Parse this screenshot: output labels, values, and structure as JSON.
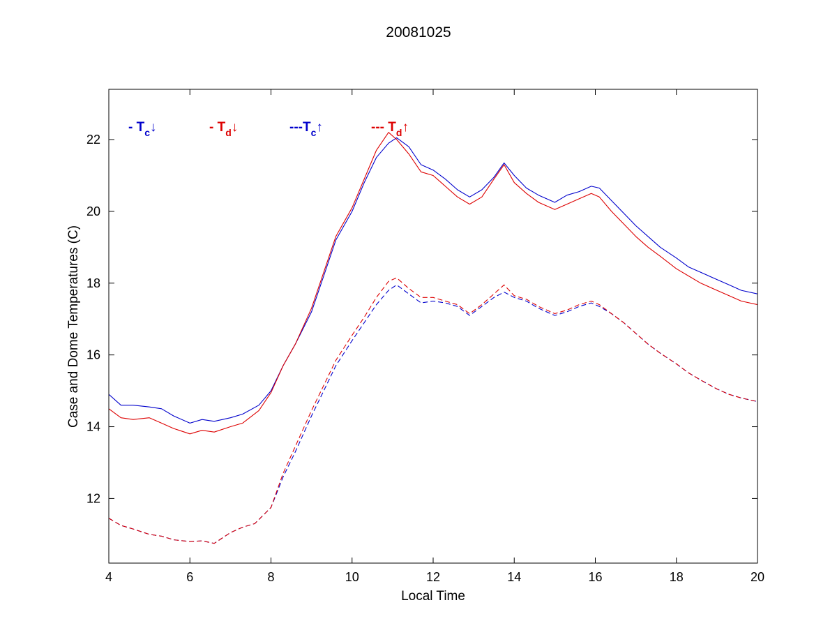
{
  "chart_data": {
    "type": "line",
    "title": "20081025",
    "xlabel": "Local Time",
    "ylabel": "Case and Dome Temperatures (C)",
    "xlim": [
      4,
      20
    ],
    "ylim": [
      10.2,
      23.4
    ],
    "xticks": [
      4,
      6,
      8,
      10,
      12,
      14,
      16,
      18,
      20
    ],
    "yticks": [
      12,
      14,
      16,
      18,
      20,
      22
    ],
    "grid": false,
    "legend_placement": "top-left (inside axes, horizontal)",
    "legend": [
      {
        "prefix": "- T",
        "sub": "c",
        "arrow": "↓",
        "color": "#0000cc"
      },
      {
        "prefix": "- T",
        "sub": "d",
        "arrow": "↓",
        "color": "#dd0000"
      },
      {
        "prefix": "---T",
        "sub": "c",
        "arrow": "↑",
        "color": "#0000cc"
      },
      {
        "prefix": "--- T",
        "sub": "d",
        "arrow": "↑",
        "color": "#dd0000"
      }
    ],
    "series": [
      {
        "color": "#0000cc",
        "style": "solid",
        "x": [
          4.0,
          4.3,
          4.6,
          5.0,
          5.3,
          5.6,
          6.0,
          6.3,
          6.6,
          7.0,
          7.3,
          7.7,
          8.0,
          8.3,
          8.6,
          9.0,
          9.3,
          9.6,
          10.0,
          10.3,
          10.6,
          10.9,
          11.1,
          11.4,
          11.7,
          12.0,
          12.3,
          12.6,
          12.9,
          13.2,
          13.5,
          13.75,
          14.0,
          14.3,
          14.6,
          15.0,
          15.3,
          15.6,
          15.9,
          16.1,
          16.4,
          16.7,
          17.0,
          17.3,
          17.6,
          18.0,
          18.3,
          18.6,
          19.0,
          19.3,
          19.6,
          20.0
        ],
        "y": [
          14.9,
          14.6,
          14.6,
          14.55,
          14.5,
          14.3,
          14.1,
          14.2,
          14.15,
          14.25,
          14.35,
          14.6,
          15.0,
          15.7,
          16.3,
          17.2,
          18.2,
          19.2,
          20.0,
          20.8,
          21.5,
          21.9,
          22.05,
          21.8,
          21.3,
          21.15,
          20.9,
          20.6,
          20.4,
          20.6,
          20.95,
          21.35,
          21.0,
          20.65,
          20.45,
          20.25,
          20.45,
          20.55,
          20.7,
          20.65,
          20.3,
          19.95,
          19.6,
          19.3,
          19.0,
          18.7,
          18.45,
          18.3,
          18.1,
          17.95,
          17.8,
          17.7
        ]
      },
      {
        "color": "#dd0000",
        "style": "solid",
        "x": [
          4.0,
          4.3,
          4.6,
          5.0,
          5.3,
          5.6,
          6.0,
          6.3,
          6.6,
          7.0,
          7.3,
          7.7,
          8.0,
          8.3,
          8.6,
          9.0,
          9.3,
          9.6,
          10.0,
          10.3,
          10.6,
          10.9,
          11.1,
          11.4,
          11.7,
          12.0,
          12.3,
          12.6,
          12.9,
          13.2,
          13.5,
          13.75,
          14.0,
          14.3,
          14.6,
          15.0,
          15.3,
          15.6,
          15.9,
          16.1,
          16.4,
          16.7,
          17.0,
          17.3,
          17.6,
          18.0,
          18.3,
          18.6,
          19.0,
          19.3,
          19.6,
          20.0
        ],
        "y": [
          14.5,
          14.25,
          14.2,
          14.25,
          14.1,
          13.95,
          13.8,
          13.9,
          13.85,
          14.0,
          14.1,
          14.45,
          14.95,
          15.7,
          16.3,
          17.3,
          18.3,
          19.3,
          20.1,
          20.9,
          21.7,
          22.2,
          22.0,
          21.6,
          21.1,
          21.0,
          20.7,
          20.4,
          20.2,
          20.4,
          20.9,
          21.3,
          20.8,
          20.5,
          20.25,
          20.05,
          20.2,
          20.35,
          20.5,
          20.4,
          20.0,
          19.65,
          19.3,
          19.0,
          18.75,
          18.4,
          18.2,
          18.0,
          17.8,
          17.65,
          17.5,
          17.4
        ]
      },
      {
        "color": "#0000cc",
        "style": "dashed",
        "x": [
          4.0,
          4.3,
          4.6,
          5.0,
          5.3,
          5.6,
          6.0,
          6.3,
          6.6,
          7.0,
          7.3,
          7.6,
          8.0,
          8.3,
          8.6,
          9.0,
          9.3,
          9.6,
          10.0,
          10.3,
          10.6,
          10.9,
          11.1,
          11.4,
          11.7,
          12.0,
          12.3,
          12.6,
          12.9,
          13.2,
          13.5,
          13.75,
          14.0,
          14.3,
          14.6,
          15.0,
          15.3,
          15.6,
          15.9,
          16.1,
          16.4,
          16.7,
          17.0,
          17.3,
          17.6,
          18.0,
          18.3,
          18.6,
          19.0,
          19.3,
          19.6,
          20.0
        ],
        "y": [
          11.45,
          11.25,
          11.15,
          11.0,
          10.95,
          10.85,
          10.8,
          10.82,
          10.75,
          11.05,
          11.2,
          11.3,
          11.75,
          12.6,
          13.3,
          14.3,
          15.0,
          15.7,
          16.4,
          16.9,
          17.4,
          17.8,
          17.95,
          17.7,
          17.45,
          17.5,
          17.45,
          17.35,
          17.1,
          17.35,
          17.6,
          17.75,
          17.6,
          17.5,
          17.3,
          17.1,
          17.2,
          17.35,
          17.45,
          17.35,
          17.15,
          16.9,
          16.6,
          16.3,
          16.05,
          15.75,
          15.5,
          15.3,
          15.05,
          14.9,
          14.8,
          14.7
        ]
      },
      {
        "color": "#dd0000",
        "style": "dashed",
        "x": [
          4.0,
          4.3,
          4.6,
          5.0,
          5.3,
          5.6,
          6.0,
          6.3,
          6.6,
          7.0,
          7.3,
          7.6,
          8.0,
          8.3,
          8.6,
          9.0,
          9.3,
          9.6,
          10.0,
          10.3,
          10.6,
          10.9,
          11.1,
          11.4,
          11.7,
          12.0,
          12.3,
          12.6,
          12.9,
          13.2,
          13.5,
          13.75,
          14.0,
          14.3,
          14.6,
          15.0,
          15.3,
          15.6,
          15.9,
          16.1,
          16.4,
          16.7,
          17.0,
          17.3,
          17.6,
          18.0,
          18.3,
          18.6,
          19.0,
          19.3,
          19.6,
          20.0
        ],
        "y": [
          11.45,
          11.25,
          11.15,
          11.0,
          10.95,
          10.85,
          10.8,
          10.82,
          10.75,
          11.05,
          11.2,
          11.3,
          11.75,
          12.7,
          13.45,
          14.45,
          15.15,
          15.85,
          16.55,
          17.05,
          17.6,
          18.05,
          18.15,
          17.85,
          17.6,
          17.6,
          17.5,
          17.4,
          17.15,
          17.4,
          17.7,
          17.95,
          17.65,
          17.55,
          17.35,
          17.15,
          17.25,
          17.4,
          17.5,
          17.4,
          17.15,
          16.9,
          16.6,
          16.3,
          16.05,
          15.75,
          15.5,
          15.3,
          15.05,
          14.9,
          14.8,
          14.7
        ]
      }
    ]
  }
}
